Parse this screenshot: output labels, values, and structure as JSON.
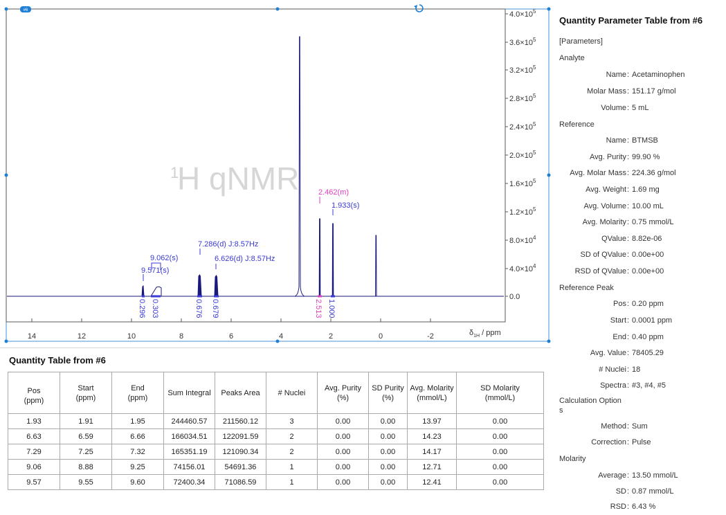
{
  "spectrum": {
    "watermark_prefix": "1",
    "watermark": "H qNMR",
    "x_axis": {
      "ticks": [
        "14",
        "12",
        "10",
        "8",
        "6",
        "4",
        "2",
        "0",
        "-2"
      ],
      "label_prefix": "δ",
      "label_sub": "1H",
      "label_suffix": " / ppm"
    },
    "y_axis": {
      "ticks": [
        {
          "mant": "4.0×10",
          "exp": "5"
        },
        {
          "mant": "3.6×10",
          "exp": "5"
        },
        {
          "mant": "3.2×10",
          "exp": "5"
        },
        {
          "mant": "2.8×10",
          "exp": "5"
        },
        {
          "mant": "2.4×10",
          "exp": "5"
        },
        {
          "mant": "2.0×10",
          "exp": "5"
        },
        {
          "mant": "1.6×10",
          "exp": "5"
        },
        {
          "mant": "1.2×10",
          "exp": "5"
        },
        {
          "mant": "8.0×10",
          "exp": "4"
        },
        {
          "mant": "4.0×10",
          "exp": "4"
        },
        {
          "mant": "0.0",
          "exp": ""
        }
      ]
    },
    "peak_labels": [
      {
        "text": "2.462(m)",
        "color": "#e040c0"
      },
      {
        "text": "1.933(s)",
        "color": "#3a3ad6"
      },
      {
        "text": "7.286(d) J:8.57Hz",
        "color": "#3a3ad6"
      },
      {
        "text": "6.626(d) J:8.57Hz",
        "color": "#3a3ad6"
      },
      {
        "text": "9.062(s)",
        "color": "#3a3ad6"
      },
      {
        "text": "9.571(s)",
        "color": "#3a3ad6"
      }
    ],
    "integrals": [
      {
        "text": "0.296",
        "color": "#3a3ad6"
      },
      {
        "text": "0.303",
        "color": "#3a3ad6"
      },
      {
        "text": "0.676",
        "color": "#3a3ad6"
      },
      {
        "text": "0.679",
        "color": "#3a3ad6"
      },
      {
        "text": "2.513",
        "color": "#e040c0"
      },
      {
        "text": "1.000",
        "color": "#3a3ad6"
      }
    ],
    "badge": "#6",
    "colors": {
      "spectrum": "#1a1a7a",
      "accent_blue": "#3a3ad6",
      "accent_pink": "#e040c0",
      "handle": "#1e7fd6"
    }
  },
  "quantity_table": {
    "title": "Quantity Table from #6",
    "columns": [
      [
        "Pos",
        "(ppm)"
      ],
      [
        "Start",
        "(ppm)"
      ],
      [
        "End",
        "(ppm)"
      ],
      [
        "Sum Integral",
        ""
      ],
      [
        "Peaks Area",
        ""
      ],
      [
        "# Nuclei",
        ""
      ],
      [
        "Avg. Purity",
        "(%)"
      ],
      [
        "SD Purity",
        "(%)"
      ],
      [
        "Avg. Molarity",
        "(mmol/L)"
      ],
      [
        "SD Molarity",
        "(mmol/L)"
      ]
    ],
    "rows": [
      [
        "1.93",
        "1.91",
        "1.95",
        "244460.57",
        "211560.12",
        "3",
        "0.00",
        "0.00",
        "13.97",
        "0.00"
      ],
      [
        "6.63",
        "6.59",
        "6.66",
        "166034.51",
        "122091.59",
        "2",
        "0.00",
        "0.00",
        "14.23",
        "0.00"
      ],
      [
        "7.29",
        "7.25",
        "7.32",
        "165351.19",
        "121090.34",
        "2",
        "0.00",
        "0.00",
        "14.17",
        "0.00"
      ],
      [
        "9.06",
        "8.88",
        "9.25",
        "74156.01",
        "54691.36",
        "1",
        "0.00",
        "0.00",
        "12.71",
        "0.00"
      ],
      [
        "9.57",
        "9.55",
        "9.60",
        "72400.34",
        "71086.59",
        "1",
        "0.00",
        "0.00",
        "12.41",
        "0.00"
      ]
    ]
  },
  "parameter_table": {
    "title": "Quantity Parameter Table from #6",
    "lines": [
      {
        "type": "section",
        "text": "[Parameters]"
      },
      {
        "type": "section",
        "text": "Analyte"
      },
      {
        "type": "kv",
        "label": "Name",
        "value": "Acetaminophen"
      },
      {
        "type": "kv",
        "label": "Molar Mass",
        "value": "151.17 g/mol"
      },
      {
        "type": "kv",
        "label": "Volume",
        "value": "5 mL"
      },
      {
        "type": "section",
        "text": "Reference"
      },
      {
        "type": "kv",
        "label": "Name",
        "value": "BTMSB"
      },
      {
        "type": "kv",
        "label": "Avg. Purity",
        "value": "99.90 %"
      },
      {
        "type": "kv",
        "label": "Avg. Molar Mass",
        "value": "224.36 g/mol"
      },
      {
        "type": "kv",
        "label": "Avg. Weight",
        "value": "1.69 mg"
      },
      {
        "type": "kv",
        "label": "Avg. Volume",
        "value": "10.00 mL"
      },
      {
        "type": "kv",
        "label": "Avg. Molarity",
        "value": "0.75 mmol/L"
      },
      {
        "type": "kv",
        "label": "QValue",
        "value": "8.82e-06"
      },
      {
        "type": "kv",
        "label": "SD of QValue",
        "value": "0.00e+00"
      },
      {
        "type": "kv",
        "label": "RSD of QValue",
        "value": "0.00e+00"
      },
      {
        "type": "section",
        "text": "Reference Peak"
      },
      {
        "type": "kv",
        "label": "Pos",
        "value": "0.20 ppm"
      },
      {
        "type": "kv",
        "label": "Start",
        "value": "0.0001 ppm"
      },
      {
        "type": "kv",
        "label": "End",
        "value": "0.40 ppm"
      },
      {
        "type": "kv",
        "label": "Avg. Value",
        "value": "78405.29"
      },
      {
        "type": "kv",
        "label": "# Nuclei",
        "value": "18"
      },
      {
        "type": "kv",
        "label": "Spectra",
        "value": "#3, #4, #5"
      },
      {
        "type": "section2",
        "text1": "Calculation Option",
        "text2": "s"
      },
      {
        "type": "kv",
        "label": "Method",
        "value": "Sum"
      },
      {
        "type": "kv",
        "label": "Correction",
        "value": "Pulse"
      },
      {
        "type": "section",
        "text": "Molarity"
      },
      {
        "type": "kv",
        "label": "Average",
        "value": "13.50 mmol/L"
      },
      {
        "type": "kv",
        "label": "SD",
        "value": "0.87 mmol/L"
      },
      {
        "type": "kv",
        "label": "RSD",
        "value": "6.43 %"
      }
    ]
  }
}
